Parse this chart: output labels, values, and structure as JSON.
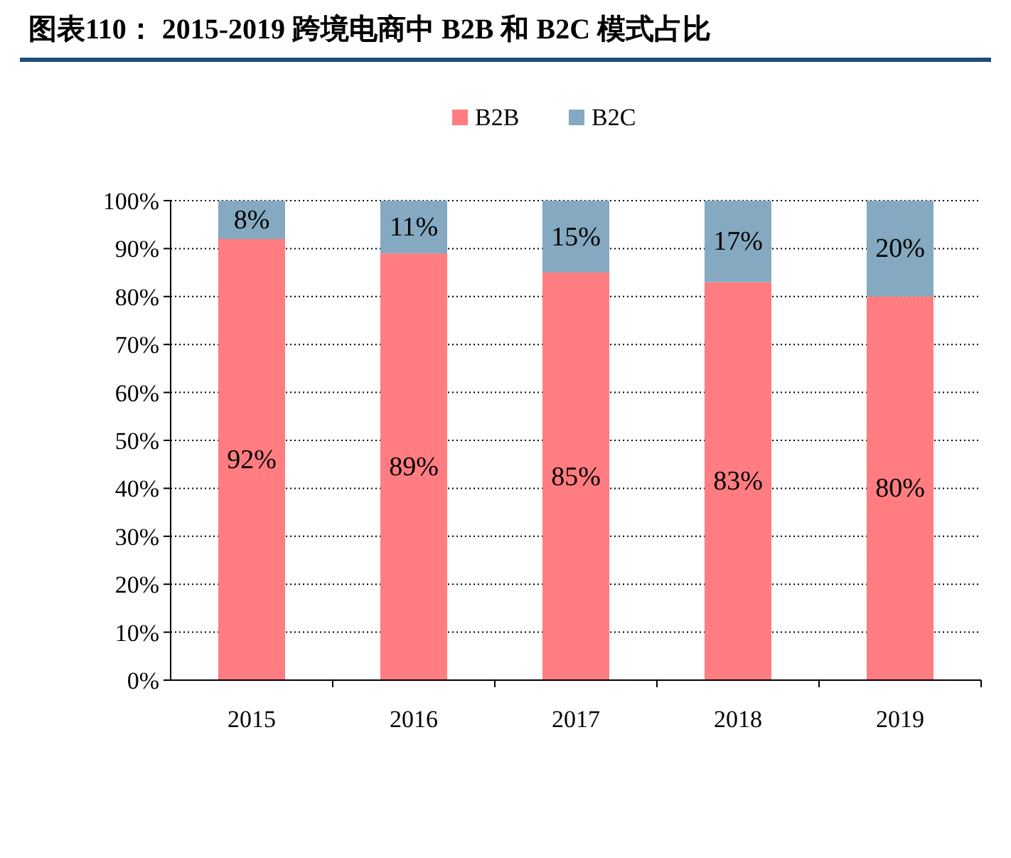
{
  "chart_data": {
    "type": "bar",
    "title": "图表110： 2015-2019 跨境电商中 B2B 和 B2C 模式占比",
    "categories": [
      "2015",
      "2016",
      "2017",
      "2018",
      "2019"
    ],
    "stacked": true,
    "series": [
      {
        "name": "B2B",
        "color": "#ff7c80",
        "values": [
          92,
          89,
          85,
          83,
          80
        ],
        "value_labels": [
          "92%",
          "89%",
          "85%",
          "83%",
          "80%"
        ]
      },
      {
        "name": "B2C",
        "color": "#84a9c0",
        "values": [
          8,
          11,
          15,
          17,
          20
        ],
        "value_labels": [
          "8%",
          "11%",
          "15%",
          "17%",
          "20%"
        ]
      }
    ],
    "ylim": [
      0,
      100
    ],
    "yticks": [
      {
        "value": 0,
        "label": "0%"
      },
      {
        "value": 10,
        "label": "10%"
      },
      {
        "value": 20,
        "label": "20%"
      },
      {
        "value": 30,
        "label": "30%"
      },
      {
        "value": 40,
        "label": "40%"
      },
      {
        "value": 50,
        "label": "50%"
      },
      {
        "value": 60,
        "label": "60%"
      },
      {
        "value": 70,
        "label": "70%"
      },
      {
        "value": 80,
        "label": "80%"
      },
      {
        "value": 90,
        "label": "90%"
      },
      {
        "value": 100,
        "label": "100%"
      }
    ],
    "grid": "y",
    "legend": "top"
  }
}
